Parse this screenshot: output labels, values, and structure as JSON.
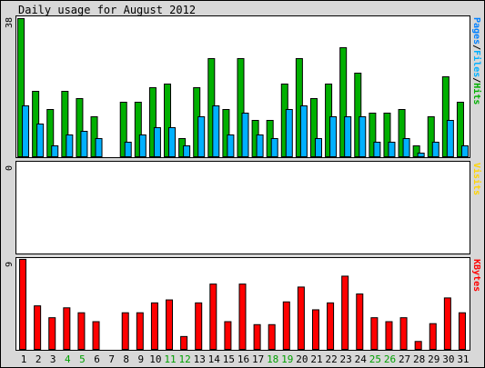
{
  "colors": {
    "hits": "#00b000",
    "files": "#00b0ff",
    "pages": "#0080ff",
    "visits": "#ffd400",
    "kbytes": "#ff0000",
    "weekend_label": "#00a000",
    "weekday_label": "#000000",
    "background": "#d8d8d8",
    "panel": "#ffffff"
  },
  "chart_data": {
    "type": "bar",
    "title": "Daily usage for August 2012",
    "categories": [
      "1",
      "2",
      "3",
      "4",
      "5",
      "6",
      "7",
      "8",
      "9",
      "10",
      "11",
      "12",
      "13",
      "14",
      "15",
      "16",
      "17",
      "18",
      "19",
      "20",
      "21",
      "22",
      "23",
      "24",
      "25",
      "26",
      "27",
      "28",
      "29",
      "30",
      "31"
    ],
    "weekend_days": [
      "4",
      "5",
      "11",
      "12",
      "18",
      "19",
      "25",
      "26"
    ],
    "panels": [
      {
        "id": "pages-files-hits",
        "max_label": "38",
        "side_label": {
          "parts": [
            "Pages",
            "/",
            "Files",
            "/",
            "Hits"
          ]
        },
        "ylim": [
          0,
          38
        ],
        "series": [
          {
            "name": "Hits",
            "values": [
              38,
              18,
              13,
              18,
              16,
              11,
              0,
              15,
              15,
              19,
              20,
              5,
              19,
              27,
              13,
              27,
              10,
              10,
              20,
              27,
              16,
              20,
              30,
              23,
              12,
              12,
              13,
              3,
              11,
              22,
              15
            ]
          },
          {
            "name": "Files",
            "values": [
              14,
              9,
              3,
              6,
              7,
              5,
              0,
              4,
              6,
              8,
              8,
              3,
              11,
              14,
              6,
              12,
              6,
              5,
              13,
              14,
              5,
              11,
              11,
              11,
              4,
              4,
              5,
              1,
              4,
              10,
              3
            ]
          }
        ]
      },
      {
        "id": "visits",
        "max_label": "0",
        "side_label": {
          "parts": [
            "Visits"
          ]
        },
        "ylim": [
          0,
          1
        ],
        "series": [
          {
            "name": "Visits",
            "values": [
              0,
              0,
              0,
              0,
              0,
              0,
              0,
              0,
              0,
              0,
              0,
              0,
              0,
              0,
              0,
              0,
              0,
              0,
              0,
              0,
              0,
              0,
              0,
              0,
              0,
              0,
              0,
              0,
              0,
              0,
              0
            ]
          }
        ]
      },
      {
        "id": "kbytes",
        "max_label": "9",
        "side_label": {
          "parts": [
            "KBytes"
          ]
        },
        "ylim": [
          0,
          9
        ],
        "series": [
          {
            "name": "KBytes",
            "values": [
              9.1,
              4.4,
              3.2,
              4.2,
              3.7,
              2.8,
              0,
              3.7,
              3.7,
              4.7,
              5.0,
              1.3,
              4.7,
              6.6,
              2.8,
              6.6,
              2.5,
              2.5,
              4.8,
              6.3,
              4.0,
              4.7,
              7.4,
              5.6,
              3.2,
              2.8,
              3.2,
              0.8,
              2.6,
              5.2,
              3.7
            ]
          }
        ]
      }
    ]
  }
}
